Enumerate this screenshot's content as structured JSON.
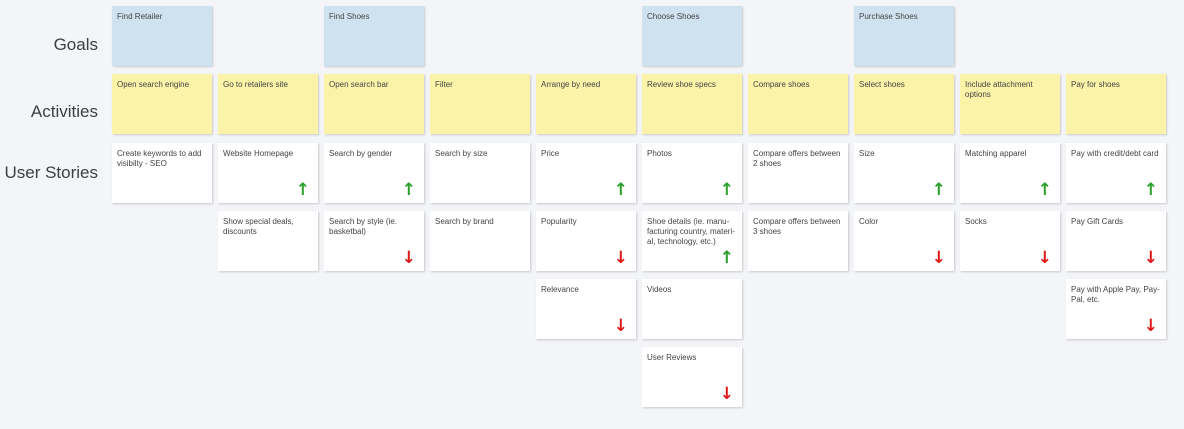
{
  "row_labels": {
    "goals": "Goals",
    "activities": "Activities",
    "user_stories": "User Stories"
  },
  "colors": {
    "goal": "#cfe2f0",
    "activity": "#faf3a8",
    "story": "#ffffff",
    "arrow_up": "#2aa02a",
    "arrow_down": "#e01818"
  },
  "columns": [
    {
      "goal": "Find Retailer",
      "activity": "Open search engine",
      "stories": [
        {
          "text": "Create keywords to add visibilty - SEO",
          "arrow": ""
        }
      ]
    },
    {
      "goal": "",
      "activity": "Go to retailers site",
      "stories": [
        {
          "text": "Website Homepage",
          "arrow": "up"
        },
        {
          "text": "Show special deals, discounts",
          "arrow": ""
        }
      ]
    },
    {
      "goal": "Find Shoes",
      "activity": "Open search bar",
      "stories": [
        {
          "text": "Search by gender",
          "arrow": "up"
        },
        {
          "text": "Search by style (ie. basketbal)",
          "arrow": "down"
        }
      ]
    },
    {
      "goal": "",
      "activity": "Filter",
      "stories": [
        {
          "text": "Search by size",
          "arrow": ""
        },
        {
          "text": "Search by brand",
          "arrow": ""
        }
      ]
    },
    {
      "goal": "",
      "activity": "Arrange by need",
      "stories": [
        {
          "text": "Price",
          "arrow": "up"
        },
        {
          "text": "Popularity",
          "arrow": "down"
        },
        {
          "text": "Relevance",
          "arrow": "down"
        }
      ]
    },
    {
      "goal": "Choose Shoes",
      "activity": "Review shoe specs",
      "stories": [
        {
          "text": "Photos",
          "arrow": "up"
        },
        {
          "text": "Shoe details (ie. manu-facturing country, materi-al, technology, etc.)",
          "arrow": "up"
        },
        {
          "text": "Videos",
          "arrow": ""
        },
        {
          "text": "User Reviews",
          "arrow": "down"
        }
      ]
    },
    {
      "goal": "",
      "activity": "Compare shoes",
      "stories": [
        {
          "text": "Compare offers  between 2 shoes",
          "arrow": ""
        },
        {
          "text": "Compare offers between 3 shoes",
          "arrow": ""
        }
      ]
    },
    {
      "goal": "Purchase Shoes",
      "activity": "Select shoes",
      "stories": [
        {
          "text": "Size",
          "arrow": "up"
        },
        {
          "text": "Color",
          "arrow": "down"
        }
      ]
    },
    {
      "goal": "",
      "activity": "Include attachment options",
      "stories": [
        {
          "text": "Matching apparel",
          "arrow": "up"
        },
        {
          "text": "Socks",
          "arrow": "down"
        }
      ]
    },
    {
      "goal": "",
      "activity": "Pay for shoes",
      "stories": [
        {
          "text": "Pay with credit/debt card",
          "arrow": "up"
        },
        {
          "text": "Pay Gift Cards",
          "arrow": "down"
        },
        {
          "text": "Pay with Apple Pay, Pay-Pal, etc.",
          "arrow": "down"
        }
      ]
    }
  ]
}
